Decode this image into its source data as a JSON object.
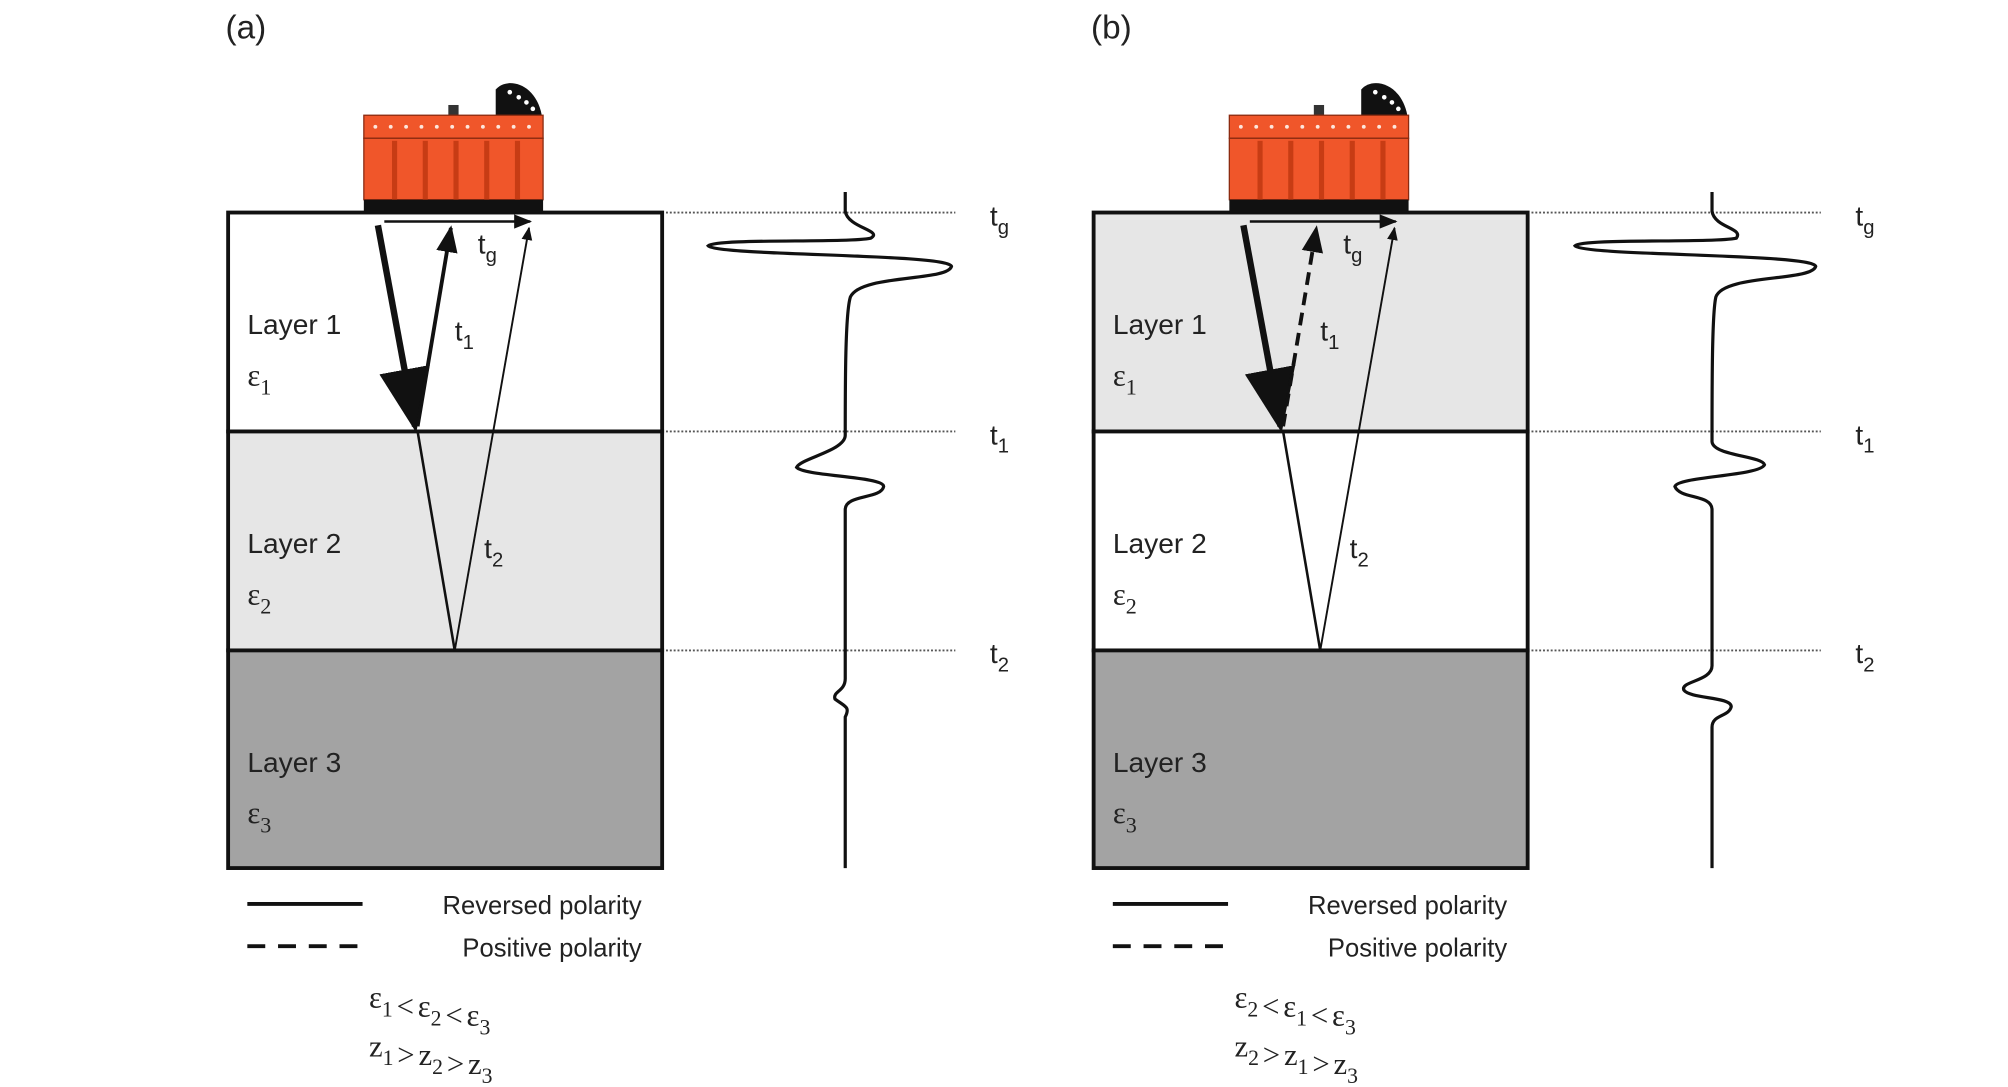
{
  "colors": {
    "device_orange": "#f0562a",
    "device_dark": "#111111",
    "layer_light": "#e6e6e6",
    "layer_white": "#ffffff",
    "layer_dark": "#a3a3a3",
    "line": "#111111"
  },
  "panels": [
    {
      "label": "(a)",
      "layer_fills": [
        "layer_white",
        "layer_light",
        "layer_dark"
      ],
      "layers": [
        {
          "name": "Layer 1",
          "eps": {
            "base": "ε",
            "sub": "1"
          }
        },
        {
          "name": "Layer 2",
          "eps": {
            "base": "ε",
            "sub": "2"
          }
        },
        {
          "name": "Layer 3",
          "eps": {
            "base": "ε",
            "sub": "3"
          }
        }
      ],
      "first_return_dashed": false,
      "ray_labels": [
        {
          "base": "t",
          "sub": "g"
        },
        {
          "base": "t",
          "sub": "1"
        },
        {
          "base": "t",
          "sub": "2"
        }
      ],
      "time_labels": [
        {
          "base": "t",
          "sub": "g"
        },
        {
          "base": "t",
          "sub": "1"
        },
        {
          "base": "t",
          "sub": "2"
        }
      ],
      "legend": {
        "solid": "Reversed polarity",
        "dashed": "Positive polarity"
      },
      "relations": [
        [
          {
            "base": "ε",
            "sub": "1"
          },
          {
            "op": "<"
          },
          {
            "base": "ε",
            "sub": "2"
          },
          {
            "op": "<"
          },
          {
            "base": "ε",
            "sub": "3"
          }
        ],
        [
          {
            "base": "z",
            "sub": "1"
          },
          {
            "op": ">"
          },
          {
            "base": "z",
            "sub": "2"
          },
          {
            "op": ">"
          },
          {
            "base": "z",
            "sub": "3"
          }
        ]
      ]
    },
    {
      "label": "(b)",
      "layer_fills": [
        "layer_light",
        "layer_white",
        "layer_dark"
      ],
      "layers": [
        {
          "name": "Layer 1",
          "eps": {
            "base": "ε",
            "sub": "1"
          }
        },
        {
          "name": "Layer 2",
          "eps": {
            "base": "ε",
            "sub": "2"
          }
        },
        {
          "name": "Layer 3",
          "eps": {
            "base": "ε",
            "sub": "3"
          }
        }
      ],
      "first_return_dashed": true,
      "ray_labels": [
        {
          "base": "t",
          "sub": "g"
        },
        {
          "base": "t",
          "sub": "1"
        },
        {
          "base": "t",
          "sub": "2"
        }
      ],
      "time_labels": [
        {
          "base": "t",
          "sub": "g"
        },
        {
          "base": "t",
          "sub": "1"
        },
        {
          "base": "t",
          "sub": "2"
        }
      ],
      "legend": {
        "solid": "Reversed polarity",
        "dashed": "Positive polarity"
      },
      "relations": [
        [
          {
            "base": "ε",
            "sub": "2"
          },
          {
            "op": "<"
          },
          {
            "base": "ε",
            "sub": "1"
          },
          {
            "op": "<"
          },
          {
            "base": "ε",
            "sub": "3"
          }
        ],
        [
          {
            "base": "z",
            "sub": "2"
          },
          {
            "op": ">"
          },
          {
            "base": "z",
            "sub": "1"
          },
          {
            "op": ">"
          },
          {
            "base": "z",
            "sub": "3"
          }
        ]
      ]
    }
  ]
}
